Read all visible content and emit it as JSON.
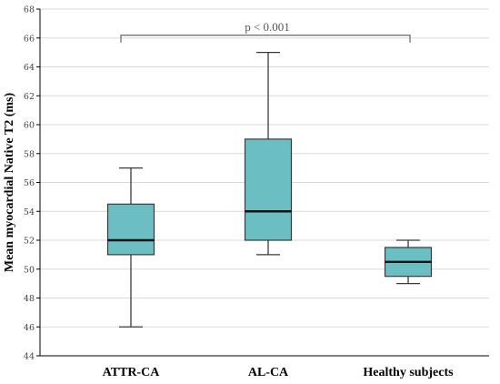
{
  "chart_data": {
    "type": "box",
    "ylabel": "Mean myocardial Native T2 (ms)",
    "xlabel": "",
    "ylim": [
      44,
      68
    ],
    "yticks": [
      44,
      46,
      48,
      50,
      52,
      54,
      56,
      58,
      60,
      62,
      64,
      66,
      68
    ],
    "grid": true,
    "categories": [
      "ATTR-CA",
      "AL-CA",
      "Healthy subjects"
    ],
    "boxes": [
      {
        "category": "ATTR-CA",
        "min": 46,
        "q1": 51,
        "median": 52,
        "q3": 54.5,
        "max": 57
      },
      {
        "category": "AL-CA",
        "min": 51,
        "q1": 52,
        "median": 54,
        "q3": 59,
        "max": 65
      },
      {
        "category": "Healthy subjects",
        "min": 49,
        "q1": 49.5,
        "median": 50.5,
        "q3": 51.5,
        "max": 52
      }
    ],
    "annotation": {
      "text": "p < 0.001",
      "from": "ATTR-CA",
      "to": "Healthy subjects",
      "y": 66
    },
    "colors": {
      "box_fill": "#6bbfc2",
      "box_stroke": "#3a3a3a",
      "grid": "#d9d9d9"
    }
  }
}
